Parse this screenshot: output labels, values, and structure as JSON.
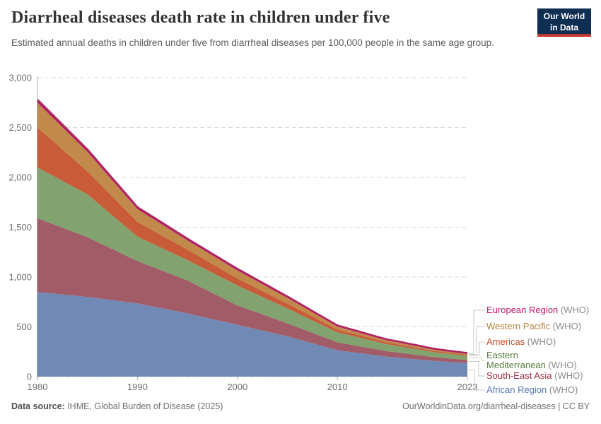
{
  "branding": {
    "line1": "Our World",
    "line2": "in Data",
    "bg": "#0e2e52",
    "bar": "#c2382c"
  },
  "footer": {
    "source_label": "Data source:",
    "source_value": " IHME, Global Burden of Disease (2025)",
    "link": "OurWorldinData.org/diarrheal-diseases | CC BY"
  },
  "chart_data": {
    "type": "area",
    "stacked": true,
    "title": "Diarrheal diseases death rate in children under five",
    "subtitle": "Estimated annual deaths in children under five from diarrheal diseases per 100,000 people in the same age group.",
    "xlabel": "",
    "ylabel": "",
    "ylim": [
      0,
      3000
    ],
    "yticks": [
      0,
      500,
      1000,
      1500,
      2000,
      2500,
      3000
    ],
    "xticks": [
      1980,
      1990,
      2000,
      2010,
      2023
    ],
    "grid": "horizontal-dashed",
    "legend_position": "right",
    "legend_suffix": "(WHO)",
    "stack_order": "bottom-to-top",
    "x": [
      1980,
      1981,
      1982,
      1983,
      1984,
      1985,
      1986,
      1987,
      1988,
      1989,
      1990,
      1991,
      1992,
      1993,
      1994,
      1995,
      1996,
      1997,
      1998,
      1999,
      2000,
      2001,
      2002,
      2003,
      2004,
      2005,
      2006,
      2007,
      2008,
      2009,
      2010,
      2011,
      2012,
      2013,
      2014,
      2015,
      2016,
      2017,
      2018,
      2019,
      2020,
      2021,
      2022,
      2023
    ],
    "series": [
      {
        "id": "african-region",
        "label": "African Region",
        "color": "#5878b8",
        "fill": "#7189b5",
        "values": [
          850,
          840,
          830,
          820,
          810,
          800,
          787,
          774,
          761,
          748,
          735,
          715,
          695,
          675,
          655,
          635,
          612,
          589,
          566,
          543,
          520,
          497,
          474,
          451,
          428,
          405,
          377,
          349,
          321,
          293,
          265,
          252,
          239,
          226,
          213,
          200,
          191,
          182,
          173,
          164,
          155,
          149,
          143,
          137
        ]
      },
      {
        "id": "south-east-asia",
        "label": "South-East Asia",
        "color": "#9c3044",
        "fill": "#a15c68",
        "values": [
          740,
          712,
          684,
          656,
          628,
          600,
          565,
          530,
          495,
          460,
          425,
          406,
          387,
          368,
          349,
          330,
          303,
          276,
          249,
          222,
          195,
          182,
          169,
          156,
          143,
          130,
          120,
          110,
          100,
          90,
          80,
          75,
          70,
          65,
          60,
          55,
          52,
          48,
          45,
          41,
          38,
          36,
          33,
          31
        ]
      },
      {
        "id": "eastern-mediterranean",
        "label": "Eastern\nMediterranean",
        "color": "#567d3e",
        "fill": "#82a270",
        "values": [
          510,
          494,
          478,
          462,
          446,
          430,
          393,
          356,
          319,
          282,
          245,
          237,
          229,
          221,
          213,
          205,
          204,
          203,
          202,
          201,
          200,
          190,
          180,
          170,
          160,
          150,
          140,
          130,
          120,
          110,
          100,
          94,
          88,
          82,
          76,
          70,
          66,
          61,
          57,
          52,
          48,
          45,
          43,
          40
        ]
      },
      {
        "id": "americas",
        "label": "Americas",
        "color": "#c04c27",
        "fill": "#c85c38",
        "values": [
          400,
          366,
          332,
          298,
          264,
          230,
          214,
          197,
          181,
          164,
          148,
          139,
          131,
          122,
          114,
          105,
          98,
          91,
          84,
          77,
          70,
          66,
          61,
          57,
          52,
          48,
          44,
          40,
          36,
          32,
          28,
          26,
          24,
          22,
          20,
          18,
          17,
          16,
          14,
          13,
          12,
          11,
          11,
          10
        ]
      },
      {
        "id": "western-pacific",
        "label": "Western Pacific",
        "color": "#b5803c",
        "fill": "#c28a4a",
        "values": [
          250,
          239,
          228,
          217,
          206,
          195,
          182,
          168,
          155,
          141,
          128,
          121,
          114,
          106,
          99,
          92,
          90,
          87,
          85,
          82,
          80,
          76,
          71,
          67,
          62,
          58,
          52,
          47,
          41,
          36,
          30,
          28,
          26,
          24,
          22,
          20,
          19,
          17,
          16,
          14,
          13,
          12,
          12,
          11
        ]
      },
      {
        "id": "european-region",
        "label": "European Region",
        "color": "#c0166a",
        "fill": "#b02364",
        "values": [
          30,
          29,
          28,
          27,
          26,
          25,
          24,
          23,
          22,
          21,
          20,
          20,
          19,
          19,
          18,
          18,
          18,
          18,
          17,
          17,
          17,
          16,
          16,
          15,
          15,
          14,
          13,
          13,
          12,
          12,
          11,
          11,
          11,
          10,
          10,
          10,
          10,
          10,
          10,
          9,
          9,
          9,
          8,
          8
        ]
      }
    ]
  }
}
